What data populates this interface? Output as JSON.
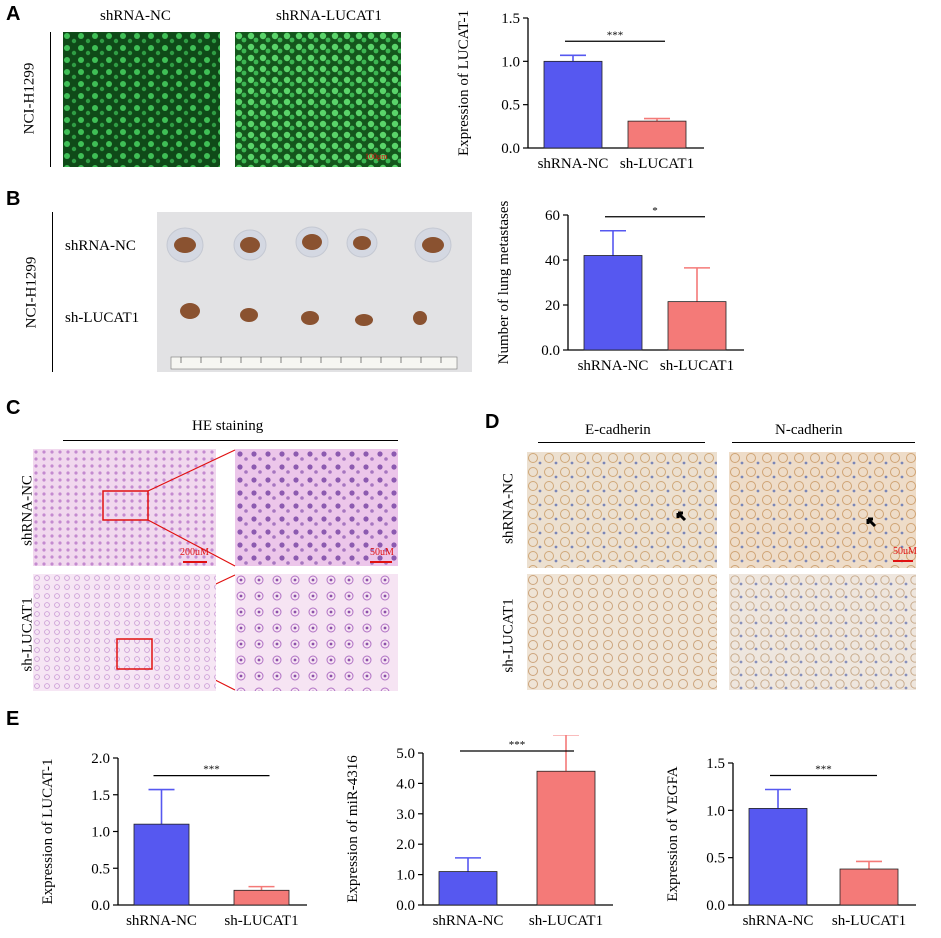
{
  "panels": {
    "A": {
      "letter": "A",
      "img_titles": [
        "shRNA-NC",
        "shRNA-LUCAT1"
      ],
      "cell_line": "NCI-H1299",
      "scale": "100μm"
    },
    "B": {
      "letter": "B",
      "cell_line": "NCI-H1299",
      "row_labels": [
        "shRNA-NC",
        "sh-LUCAT1"
      ]
    },
    "C": {
      "letter": "C",
      "header": "HE staining",
      "row_labels": [
        "shRNA-NC",
        "sh-LUCAT1"
      ],
      "scale_low": "200uM",
      "scale_high": "50uM"
    },
    "D": {
      "letter": "D",
      "headers": [
        "E-cadherin",
        "N-cadherin"
      ],
      "row_labels": [
        "shRNA-NC",
        "sh-LUCAT1"
      ],
      "scale": "50uM"
    },
    "E": {
      "letter": "E"
    }
  },
  "colors": {
    "blue_bar": "#5658f0",
    "red_bar": "#f47a78",
    "fluor": "#1f8a2e",
    "he_pink": "#ecc6e8",
    "ihc_bg": "#efe6da",
    "scale_red": "#e01010"
  },
  "chart_data": [
    {
      "id": "A",
      "type": "bar",
      "categories": [
        "shRNA-NC",
        "sh-LUCAT1"
      ],
      "values": [
        1.0,
        0.31
      ],
      "errors": [
        0.07,
        0.03
      ],
      "ylabel": "Expression of LUCAT-1",
      "ylim": [
        0,
        1.5
      ],
      "yticks": [
        "0.0",
        "0.5",
        "1.0",
        "1.5"
      ],
      "sig": "***"
    },
    {
      "id": "B",
      "type": "bar",
      "categories": [
        "shRNA-NC",
        "sh-LUCAT1"
      ],
      "values": [
        42,
        21.5
      ],
      "errors": [
        11,
        15
      ],
      "ylabel": "Number of lung metastases",
      "ylim": [
        0,
        60
      ],
      "yticks": [
        "0.0",
        "20",
        "40",
        "60"
      ],
      "sig": "*"
    },
    {
      "id": "E1",
      "type": "bar",
      "categories": [
        "shRNA-NC",
        "sh-LUCAT1"
      ],
      "values": [
        1.1,
        0.2
      ],
      "errors": [
        0.47,
        0.05
      ],
      "ylabel": "Expression of LUCAT-1",
      "ylim": [
        0,
        2.0
      ],
      "yticks": [
        "0.0",
        "0.5",
        "1.0",
        "1.5",
        "2.0"
      ],
      "sig": "***"
    },
    {
      "id": "E2",
      "type": "bar",
      "categories": [
        "shRNA-NC",
        "sh-LUCAT1"
      ],
      "values": [
        1.1,
        4.4
      ],
      "errors": [
        0.45,
        1.2
      ],
      "ylabel": "Expression of miR-4316",
      "ylim": [
        0,
        5.0
      ],
      "yticks": [
        "0.0",
        "1.0",
        "2.0",
        "3.0",
        "4.0",
        "5.0"
      ],
      "sig": "***"
    },
    {
      "id": "E3",
      "type": "bar",
      "categories": [
        "shRNA-NC",
        "sh-LUCAT1"
      ],
      "values": [
        1.02,
        0.38
      ],
      "errors": [
        0.2,
        0.08
      ],
      "ylabel": "Expression of VEGFA",
      "ylim": [
        0,
        1.5
      ],
      "yticks": [
        "0.0",
        "0.5",
        "1.0",
        "1.5"
      ],
      "sig": "***"
    }
  ]
}
